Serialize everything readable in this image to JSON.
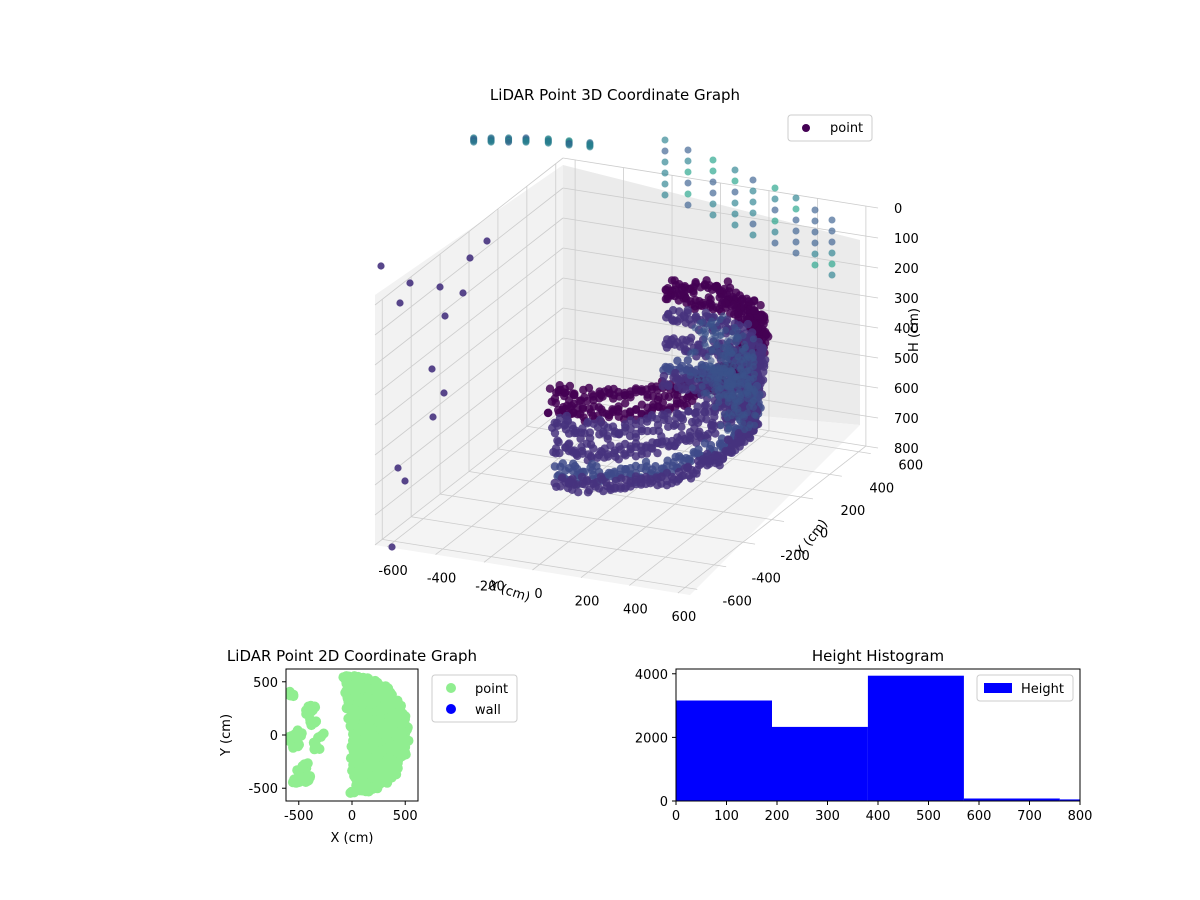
{
  "chart_data": [
    {
      "type": "scatter3d",
      "title": "LiDAR Point 3D Coordinate Graph",
      "xlabel": "X (cm)",
      "ylabel": "Y (cm)",
      "zlabel": "H (cm)",
      "xlim": [
        -650,
        650
      ],
      "ylim": [
        -650,
        650
      ],
      "zlim": [
        800,
        0
      ],
      "xticks": [
        -600,
        -400,
        -200,
        0,
        200,
        400,
        600
      ],
      "yticks": [
        -600,
        -400,
        -200,
        0,
        200,
        400,
        600
      ],
      "zticks": [
        0,
        100,
        200,
        300,
        400,
        500,
        600,
        700,
        800
      ],
      "colormap": "viridis",
      "legend": {
        "position": "top-right",
        "entries": [
          {
            "name": "point",
            "color": "#440154"
          }
        ]
      },
      "series": [
        {
          "name": "point",
          "description": "approx. 9,500 LiDAR returns forming curved wall arcs; color varies with height (viridis)"
        }
      ],
      "grid": true
    },
    {
      "type": "scatter",
      "title": "LiDAR Point 2D Coordinate Graph",
      "xlabel": "X (cm)",
      "ylabel": "Y (cm)",
      "xlim": [
        -620,
        620
      ],
      "ylim": [
        -620,
        620
      ],
      "xticks": [
        -500,
        0,
        500
      ],
      "yticks": [
        -500,
        0,
        500
      ],
      "legend": {
        "position": "outside-right",
        "entries": [
          {
            "name": "point",
            "color": "#90ee90"
          },
          {
            "name": "wall",
            "color": "#0000ff"
          }
        ]
      },
      "grid": false
    },
    {
      "type": "bar",
      "title": "Height Histogram",
      "xlim": [
        0,
        800
      ],
      "ylim": [
        0,
        4150
      ],
      "xticks": [
        0,
        100,
        200,
        300,
        400,
        500,
        600,
        700,
        800
      ],
      "yticks": [
        0,
        2000,
        4000
      ],
      "bin_edges": [
        0,
        190,
        380,
        570,
        760,
        800
      ],
      "values": [
        3160,
        2330,
        3940,
        80,
        50
      ],
      "color": "#0000ff",
      "legend": {
        "position": "top-right",
        "entries": [
          {
            "name": "Height",
            "color": "#0000ff"
          }
        ]
      },
      "grid": false
    }
  ]
}
